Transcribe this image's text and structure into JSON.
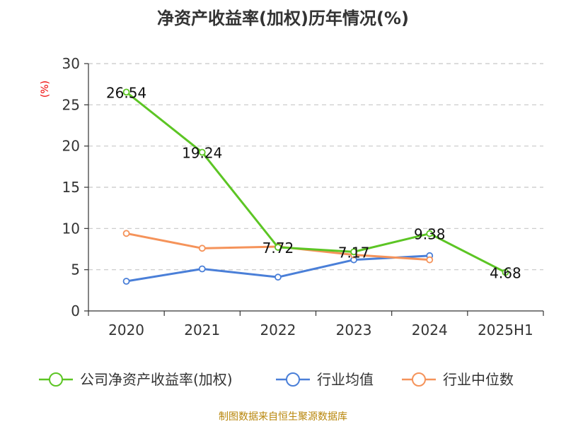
{
  "chart_data": {
    "type": "line",
    "title": "净资产收益率(加权)历年情况(%)",
    "ylabel": "(%)",
    "xlabel": "",
    "categories": [
      "2020",
      "2021",
      "2022",
      "2023",
      "2024",
      "2025H1"
    ],
    "ylim": [
      0,
      30
    ],
    "yticks": [
      0,
      5,
      10,
      15,
      20,
      25,
      30
    ],
    "grid": true,
    "legend_position": "bottom",
    "series": [
      {
        "name": "公司净资产收益率(加权)",
        "color": "#5cc524",
        "values": [
          26.54,
          19.24,
          7.72,
          7.17,
          9.38,
          4.68
        ],
        "data_labels": [
          "26.54",
          "19.24",
          "7.72",
          "7.17",
          "9.38",
          "4.68"
        ]
      },
      {
        "name": "行业均值",
        "color": "#4a7fd8",
        "values": [
          3.6,
          5.1,
          4.1,
          6.2,
          6.7,
          null
        ]
      },
      {
        "name": "行业中位数",
        "color": "#f5935a",
        "values": [
          9.4,
          7.6,
          7.8,
          6.8,
          6.2,
          null
        ]
      }
    ]
  },
  "source_note": "制图数据来自恒生聚源数据库"
}
